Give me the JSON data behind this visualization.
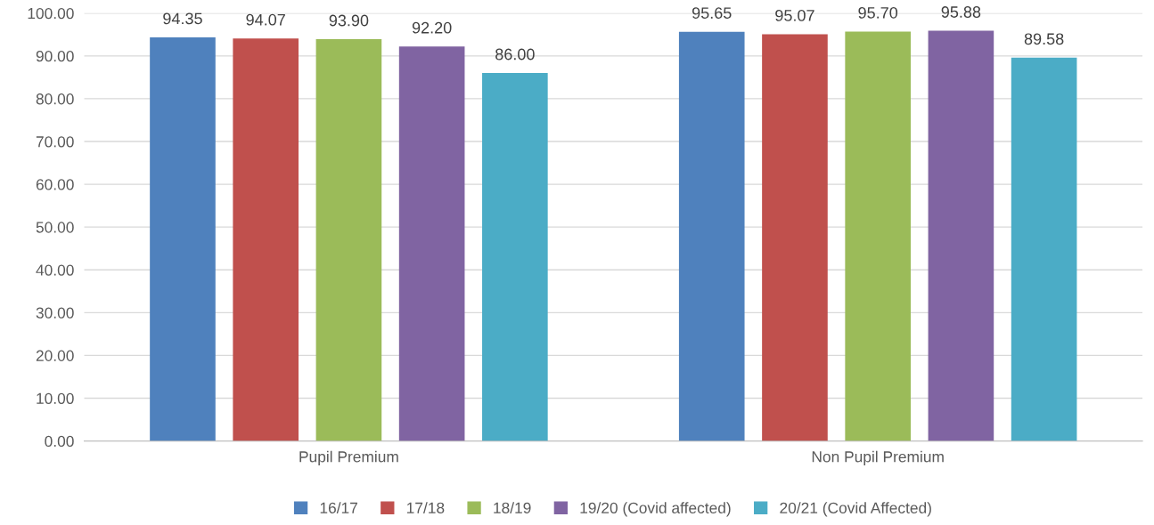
{
  "chart_data": {
    "type": "bar",
    "categories": [
      "Pupil Premium",
      "Non Pupil Premium"
    ],
    "series": [
      {
        "name": "16/17",
        "color": "#4f81bd",
        "values": [
          94.35,
          95.65
        ],
        "value_labels": [
          "94.35",
          "95.65"
        ]
      },
      {
        "name": "17/18",
        "color": "#c0504d",
        "values": [
          94.07,
          95.07
        ],
        "value_labels": [
          "94.07",
          "95.07"
        ]
      },
      {
        "name": "18/19",
        "color": "#9bbb59",
        "values": [
          93.9,
          95.7
        ],
        "value_labels": [
          "93.90",
          "95.70"
        ]
      },
      {
        "name": "19/20 (Covid affected)",
        "color": "#8064a2",
        "values": [
          92.2,
          95.88
        ],
        "value_labels": [
          "92.20",
          "95.88"
        ]
      },
      {
        "name": "20/21 (Covid Affected)",
        "color": "#4bacc6",
        "values": [
          86.0,
          89.58
        ],
        "value_labels": [
          "86.00",
          "89.58"
        ]
      }
    ],
    "ylim": [
      0,
      100
    ],
    "yticks": [
      {
        "value": 0,
        "label": "0.00"
      },
      {
        "value": 10,
        "label": "10.00"
      },
      {
        "value": 20,
        "label": "20.00"
      },
      {
        "value": 30,
        "label": "30.00"
      },
      {
        "value": 40,
        "label": "40.00"
      },
      {
        "value": 50,
        "label": "50.00"
      },
      {
        "value": 60,
        "label": "60.00"
      },
      {
        "value": 70,
        "label": "70.00"
      },
      {
        "value": 80,
        "label": "80.00"
      },
      {
        "value": 90,
        "label": "90.00"
      },
      {
        "value": 100,
        "label": "100.00"
      }
    ],
    "grid": "y",
    "legend": "bottom"
  }
}
